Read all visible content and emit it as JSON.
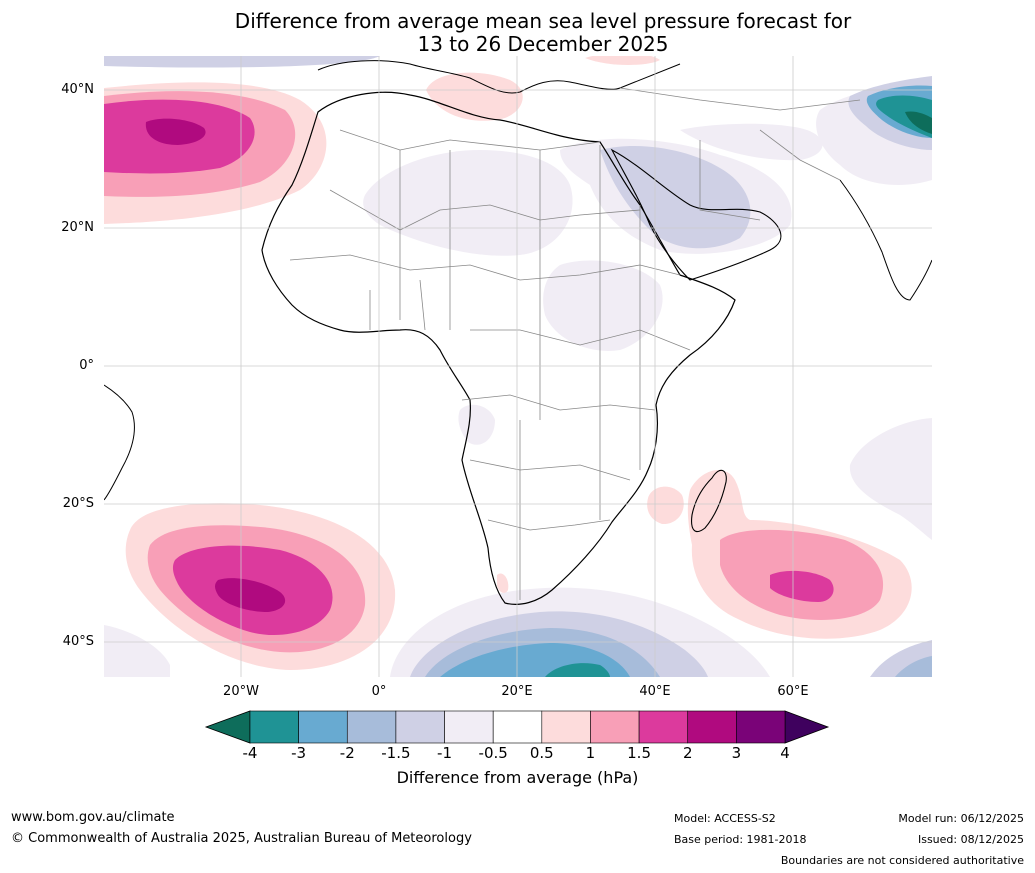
{
  "title": {
    "line1": "Difference from average mean sea level pressure forecast for",
    "line2": "13 to 26 December 2025"
  },
  "map": {
    "region": "Africa",
    "lat_labels": [
      "40°N",
      "20°N",
      "0°",
      "20°S",
      "40°S"
    ],
    "lon_labels": [
      "20°W",
      "0°",
      "20°E",
      "40°E",
      "60°E"
    ]
  },
  "colorbar": {
    "ticks": [
      "-4",
      "-3",
      "-2",
      "-1.5",
      "-1",
      "-0.5",
      "0.5",
      "1",
      "1.5",
      "2",
      "3",
      "4"
    ],
    "colors": [
      "#0e6d5b",
      "#1f9395",
      "#68aad1",
      "#a7bcda",
      "#cfd0e5",
      "#f1edf5",
      "#ffffff",
      "#fddcdc",
      "#f89fb7",
      "#dc3a9d",
      "#b00a7f",
      "#7a0378",
      "#3f015e"
    ],
    "label": "Difference from average (hPa)"
  },
  "footer": {
    "website": "www.bom.gov.au/climate",
    "copyright": "© Commonwealth of Australia 2025, Australian Bureau of Meteorology",
    "model": "Model: ACCESS-S2",
    "base_period": "Base period: 1981-2018",
    "model_run": "Model run: 06/12/2025",
    "issued": "Issued: 08/12/2025",
    "disclaimer": "Boundaries are not considered authoritative"
  }
}
